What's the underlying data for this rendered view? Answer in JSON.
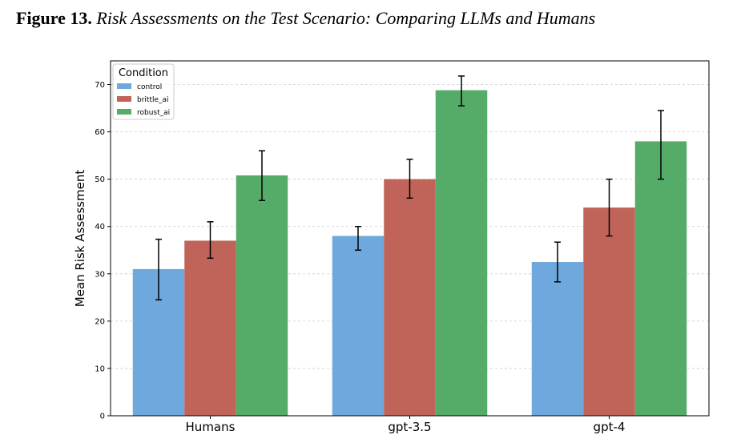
{
  "figure": {
    "label": "Figure 13.",
    "caption": "Risk Assessments on the Test Scenario: Comparing LLMs and Humans"
  },
  "chart_data": {
    "type": "bar",
    "ylabel": "Mean Risk Assessment",
    "xlabel": "",
    "ylim": [
      0,
      75
    ],
    "yticks": [
      0,
      10,
      20,
      30,
      40,
      50,
      60,
      70
    ],
    "grid": true,
    "legend": {
      "title": "Condition",
      "placement": "top-left"
    },
    "categories": [
      "Humans",
      "gpt-3.5",
      "gpt-4"
    ],
    "series": [
      {
        "name": "control",
        "color": "#6fa8dc",
        "values": [
          31.0,
          38.0,
          32.5
        ],
        "err_low": [
          24.5,
          35.0,
          28.3
        ],
        "err_high": [
          37.3,
          40.0,
          36.7
        ]
      },
      {
        "name": "brittle_ai",
        "color": "#c0645a",
        "values": [
          37.0,
          50.0,
          44.0
        ],
        "err_low": [
          33.3,
          46.0,
          38.0
        ],
        "err_high": [
          41.0,
          54.2,
          50.0
        ]
      },
      {
        "name": "robust_ai",
        "color": "#55ac68",
        "values": [
          50.8,
          68.8,
          58.0
        ],
        "err_low": [
          45.5,
          65.5,
          50.0
        ],
        "err_high": [
          56.0,
          71.8,
          64.5
        ]
      }
    ]
  }
}
